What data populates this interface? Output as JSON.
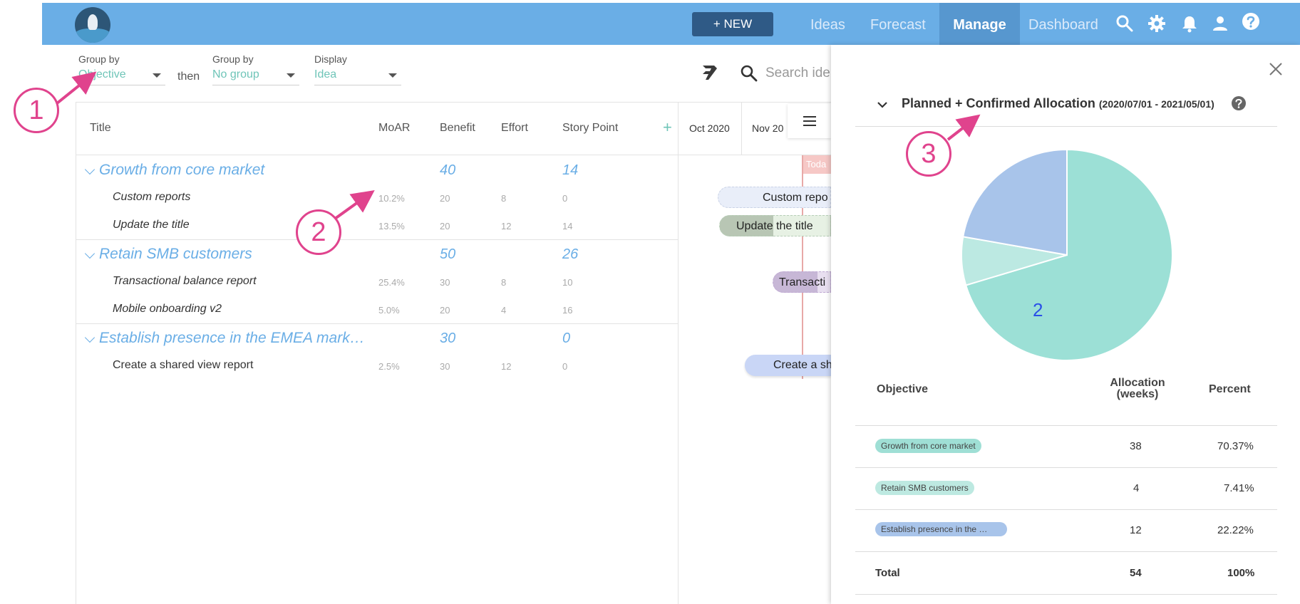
{
  "nav": {
    "new_button": "+ NEW",
    "links": [
      "Ideas",
      "Forecast",
      "Manage",
      "Dashboard"
    ],
    "active": "Manage",
    "icons": [
      "search-icon",
      "gear-icon",
      "bell-icon",
      "user-icon",
      "help-icon"
    ]
  },
  "toolbar": {
    "group_by_1_label": "Group by",
    "group_by_1_value": "Objective",
    "then_label": "then",
    "group_by_2_label": "Group by",
    "group_by_2_value": "No group",
    "display_label": "Display",
    "display_value": "Idea",
    "search_placeholder": "Search ide"
  },
  "grid": {
    "columns": [
      "Title",
      "MoAR",
      "Benefit",
      "Effort",
      "Story Point"
    ],
    "add_column": "+",
    "timeline_months": [
      "Oct 2020",
      "Nov 20"
    ],
    "today_label": "Toda",
    "groups": [
      {
        "title": "Growth from core market",
        "benefit": "40",
        "story_point": "14",
        "rows": [
          {
            "title": "Custom reports",
            "moar": "10.2%",
            "benefit": "20",
            "effort": "8",
            "story_point": "0",
            "bar": "Custom repo"
          },
          {
            "title": "Update the title",
            "moar": "13.5%",
            "benefit": "20",
            "effort": "12",
            "story_point": "14",
            "bar": "Update the title"
          }
        ]
      },
      {
        "title": "Retain SMB customers",
        "benefit": "50",
        "story_point": "26",
        "rows": [
          {
            "title": "Transactional balance report",
            "moar": "25.4%",
            "benefit": "30",
            "effort": "8",
            "story_point": "10",
            "bar": "Transacti"
          },
          {
            "title": "Mobile onboarding v2",
            "moar": "5.0%",
            "benefit": "20",
            "effort": "4",
            "story_point": "16",
            "bar": ""
          }
        ]
      },
      {
        "title": "Establish presence in the EMEA mark…",
        "benefit": "30",
        "story_point": "0",
        "rows": [
          {
            "title": "Create a shared view report",
            "moar": "2.5%",
            "benefit": "30",
            "effort": "12",
            "story_point": "0",
            "bar": "Create a sh"
          }
        ]
      }
    ]
  },
  "panel": {
    "title": "Planned + Confirmed Allocation",
    "range": "(2020/07/01 - 2021/05/01)",
    "headers": {
      "objective": "Objective",
      "allocation": "Allocation (weeks)",
      "percent": "Percent"
    },
    "rows": [
      {
        "objective": "Growth from core market",
        "allocation": "38",
        "percent": "70.37%",
        "color": "#9fdfd5"
      },
      {
        "objective": "Retain SMB customers",
        "allocation": "4",
        "percent": "7.41%",
        "color": "#bde9e1"
      },
      {
        "objective": "Establish presence in the …",
        "allocation": "12",
        "percent": "22.22%",
        "color": "#a8c4ea"
      }
    ],
    "total": {
      "label": "Total",
      "allocation": "54",
      "percent": "100%"
    }
  },
  "chart_data": {
    "type": "pie",
    "categories": [
      "Growth from core market",
      "Retain SMB customers",
      "Establish presence in the EMEA market"
    ],
    "values": [
      38,
      4,
      12
    ],
    "colors": [
      "#9ce0d6",
      "#bce9e2",
      "#a8c4ea"
    ],
    "labels_shown": [
      "2"
    ]
  },
  "annotations": [
    "1",
    "2",
    "3"
  ]
}
